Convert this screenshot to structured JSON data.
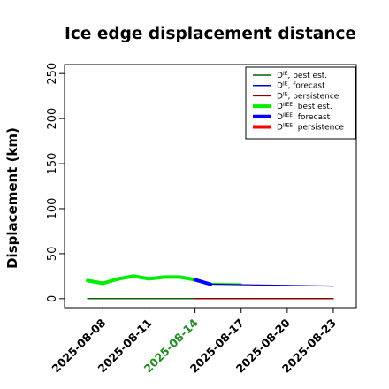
{
  "chart_data": {
    "type": "line",
    "title": "Ice edge displacement distance",
    "xlabel": "",
    "ylabel": "Displacement (km)",
    "ylim": [
      -10,
      260
    ],
    "xlim": [
      "2025-08-05T12:00",
      "2025-08-24T12:00"
    ],
    "yticks": [
      0,
      50,
      100,
      150,
      200,
      250
    ],
    "xticks": [
      "2025-08-08",
      "2025-08-11",
      "2025-08-14",
      "2025-08-17",
      "2025-08-20",
      "2025-08-23"
    ],
    "highlight_tick": "2025-08-14",
    "highlight_color": "#228b22",
    "grid": false,
    "legend_position": "top-right",
    "legend": [
      {
        "base": "D",
        "sup": "IE",
        "label": ", best est."
      },
      {
        "base": "D",
        "sup": "IE",
        "label": ", forecast"
      },
      {
        "base": "D",
        "sup": "IE",
        "label": ", persistence"
      },
      {
        "base": "D",
        "sup": "IIEE",
        "label": ", best est."
      },
      {
        "base": "D",
        "sup": "IIEE",
        "label": ", forecast"
      },
      {
        "base": "D",
        "sup": "IIEE",
        "label": ", persistence"
      }
    ],
    "series": [
      {
        "key": "ie_best",
        "color": "#006400",
        "width": 1.5,
        "x": [
          "2025-08-07",
          "2025-08-08",
          "2025-08-09",
          "2025-08-10",
          "2025-08-11",
          "2025-08-12",
          "2025-08-13",
          "2025-08-14"
        ],
        "y": [
          0,
          0,
          0,
          0,
          0,
          0,
          0,
          0
        ]
      },
      {
        "key": "ie_forecast",
        "color": "#0000cd",
        "width": 1.2,
        "x": [
          "2025-08-14",
          "2025-08-15",
          "2025-08-23"
        ],
        "y": [
          0,
          0,
          0
        ]
      },
      {
        "key": "ie_persistence",
        "color": "#8b0000",
        "width": 1.5,
        "x": [
          "2025-08-14",
          "2025-08-23"
        ],
        "y": [
          0,
          0
        ]
      },
      {
        "key": "iiee_best",
        "color": "#00ee00",
        "width": 4,
        "x": [
          "2025-08-07",
          "2025-08-08",
          "2025-08-09",
          "2025-08-10",
          "2025-08-11",
          "2025-08-12",
          "2025-08-13",
          "2025-08-14"
        ],
        "y": [
          20,
          17,
          22,
          25,
          22,
          24,
          24,
          21
        ]
      },
      {
        "key": "iiee_forecast",
        "color": "#0000ff",
        "width": 4,
        "x": [
          "2025-08-14",
          "2025-08-15"
        ],
        "y": [
          21,
          16
        ]
      },
      {
        "key": "iiee_persistence",
        "color": "#ff0000",
        "width": 4,
        "x": [],
        "y": []
      },
      {
        "key": "iiee_forecast_thin",
        "color": "#0000cd",
        "width": 1.2,
        "x": [
          "2025-08-15",
          "2025-08-23"
        ],
        "y": [
          16,
          14
        ]
      },
      {
        "key": "iiee_best_thin",
        "color": "#00ee00",
        "width": 1.2,
        "x": [
          "2025-08-15",
          "2025-08-17"
        ],
        "y": [
          17,
          16.5
        ]
      }
    ]
  }
}
